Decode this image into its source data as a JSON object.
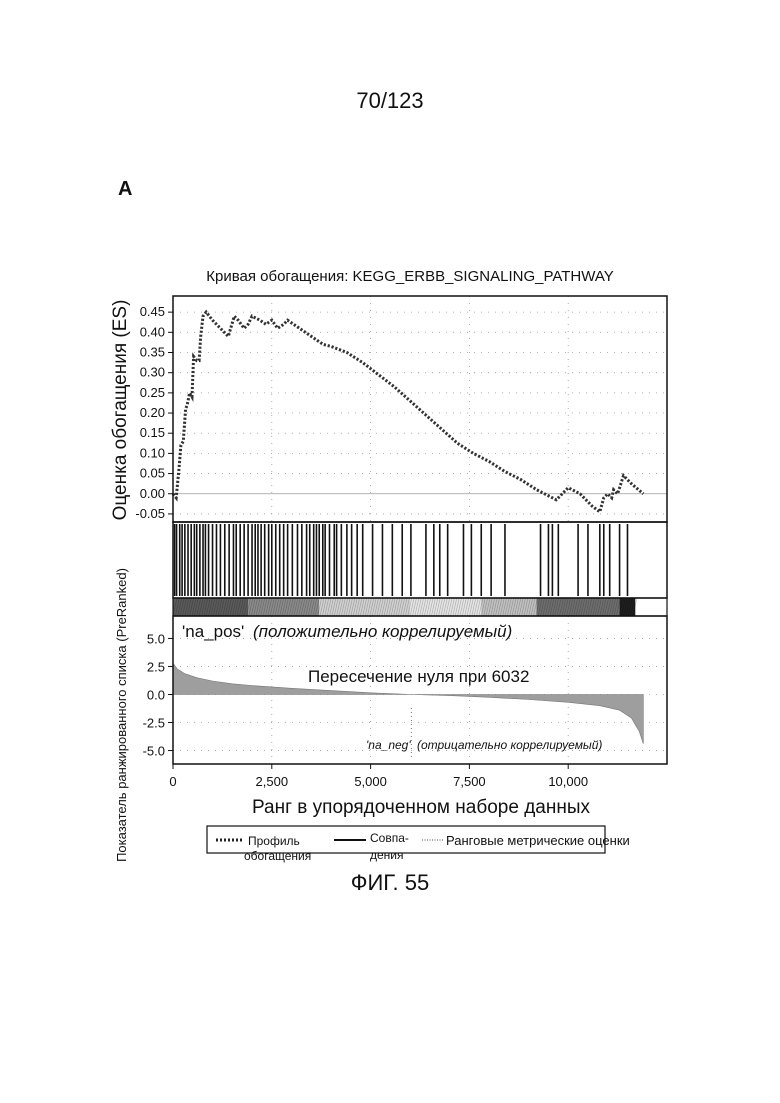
{
  "page": {
    "page_number": "70/123",
    "panel_label": "A",
    "figure_caption": "ФИГ. 55"
  },
  "chart_data": {
    "type": "line",
    "title": "Кривая обогащения: KEGG_ERBB_SIGNALING_PATHWAY",
    "xlabel": "Ранг в упорядоченном наборе данных",
    "ylabel_top": "Оценка обогащения (ES)",
    "ylabel_bottom": "Показатель ранжированного списка (PreRanked)",
    "xlim": [
      0,
      12500
    ],
    "x_ticks": [
      0,
      2500,
      5000,
      7500,
      10000
    ],
    "x_tick_labels": [
      "0",
      "2,500",
      "5,000",
      "7,500",
      "10,000"
    ],
    "es_ylim": [
      -0.07,
      0.49
    ],
    "es_ticks": [
      0.45,
      0.4,
      0.35,
      0.3,
      0.25,
      0.2,
      0.15,
      0.1,
      0.05,
      0.0,
      -0.05
    ],
    "es_tick_labels": [
      "0.45",
      "0.40",
      "0.35",
      "0.30",
      "0.25",
      "0.20",
      "0.15",
      "0.10",
      "0.05",
      "0.00",
      "-0.05"
    ],
    "metric_ylim": [
      -6.2,
      7.0
    ],
    "metric_ticks": [
      5.0,
      2.5,
      0.0,
      -2.5,
      -5.0
    ],
    "metric_tick_labels": [
      "5.0",
      "2.5",
      "0.0",
      "-2.5",
      "-5.0"
    ],
    "grid": true,
    "legend_position": "bottom",
    "series": [
      {
        "name": "Профиль обогащения",
        "x": [
          0,
          80,
          150,
          200,
          260,
          320,
          360,
          420,
          480,
          520,
          600,
          660,
          700,
          760,
          840,
          1000,
          1200,
          1400,
          1550,
          1650,
          1800,
          1900,
          2000,
          2200,
          2350,
          2500,
          2650,
          2800,
          2900,
          3200,
          3500,
          3800,
          4000,
          4400,
          4800,
          5200,
          5600,
          6000,
          6400,
          6800,
          7200,
          7600,
          8000,
          8400,
          8800,
          9200,
          9400,
          9600,
          9700,
          9800,
          10000,
          10300,
          10600,
          10800,
          10900,
          11000,
          11100,
          11150,
          11250,
          11300,
          11400,
          11600,
          11900
        ],
        "y": [
          0.0,
          -0.01,
          0.06,
          0.12,
          0.13,
          0.21,
          0.22,
          0.25,
          0.24,
          0.34,
          0.33,
          0.33,
          0.39,
          0.44,
          0.45,
          0.43,
          0.41,
          0.39,
          0.44,
          0.43,
          0.41,
          0.42,
          0.44,
          0.43,
          0.42,
          0.43,
          0.41,
          0.42,
          0.43,
          0.41,
          0.39,
          0.37,
          0.365,
          0.35,
          0.325,
          0.295,
          0.265,
          0.23,
          0.195,
          0.16,
          0.125,
          0.1,
          0.08,
          0.055,
          0.035,
          0.01,
          0.0,
          -0.01,
          -0.015,
          -0.005,
          0.015,
          0.0,
          -0.03,
          -0.045,
          -0.01,
          0.0,
          -0.01,
          0.01,
          0.0,
          0.015,
          0.045,
          0.025,
          0.0
        ]
      },
      {
        "name": "Совпадения",
        "x": [
          40,
          90,
          170,
          230,
          300,
          380,
          460,
          540,
          600,
          680,
          760,
          820,
          900,
          1000,
          1100,
          1200,
          1310,
          1420,
          1530,
          1600,
          1700,
          1800,
          1900,
          2000,
          2080,
          2150,
          2230,
          2320,
          2420,
          2500,
          2600,
          2700,
          2800,
          2900,
          3020,
          3150,
          3260,
          3380,
          3460,
          3560,
          3630,
          3700,
          3790,
          3850,
          3960,
          4080,
          4140,
          4260,
          4400,
          4520,
          4660,
          4800,
          5050,
          5300,
          5550,
          5800,
          6020,
          6400,
          6600,
          6750,
          6950,
          7350,
          7550,
          7800,
          8050,
          8400,
          9300,
          9500,
          9600,
          9750,
          10250,
          10500,
          10800,
          10900,
          11050,
          11300,
          11500
        ],
        "y_meaning": "hit (vertical tick per gene in set)"
      },
      {
        "name": "Ранговые метрические оценки",
        "x": [
          0,
          100,
          300,
          600,
          1000,
          1500,
          2000,
          3000,
          4000,
          5000,
          6032,
          7000,
          8000,
          9000,
          10000,
          10800,
          11300,
          11600,
          11800,
          11900
        ],
        "y": [
          2.8,
          2.3,
          1.85,
          1.5,
          1.2,
          0.95,
          0.8,
          0.55,
          0.35,
          0.15,
          0.0,
          -0.1,
          -0.25,
          -0.45,
          -0.7,
          -1.0,
          -1.4,
          -2.1,
          -3.3,
          -4.4
        ]
      }
    ],
    "annotations": {
      "pos_label_quote": "'na_pos'",
      "pos_label_text": "(положительно коррелируемый)",
      "zero_cross": "Пересечение нуля при 6032",
      "neg_label_quote": "'na_neg'",
      "neg_label_text": "(отрицательно коррелируемый)"
    },
    "legend": [
      {
        "label_line1": "Профиль",
        "label_line2": "обогащения",
        "style": "dotted-thick"
      },
      {
        "label_line1": "Совпа-",
        "label_line2": "дения",
        "style": "solid"
      },
      {
        "label_line1": "Ранговые метрические оценки",
        "label_line2": "",
        "style": "dotted-thin"
      }
    ],
    "colors": {
      "curve": "#333333",
      "frame": "#111111",
      "grid": "#9a9a9a",
      "metric_fill": "#9e9e9e"
    }
  }
}
